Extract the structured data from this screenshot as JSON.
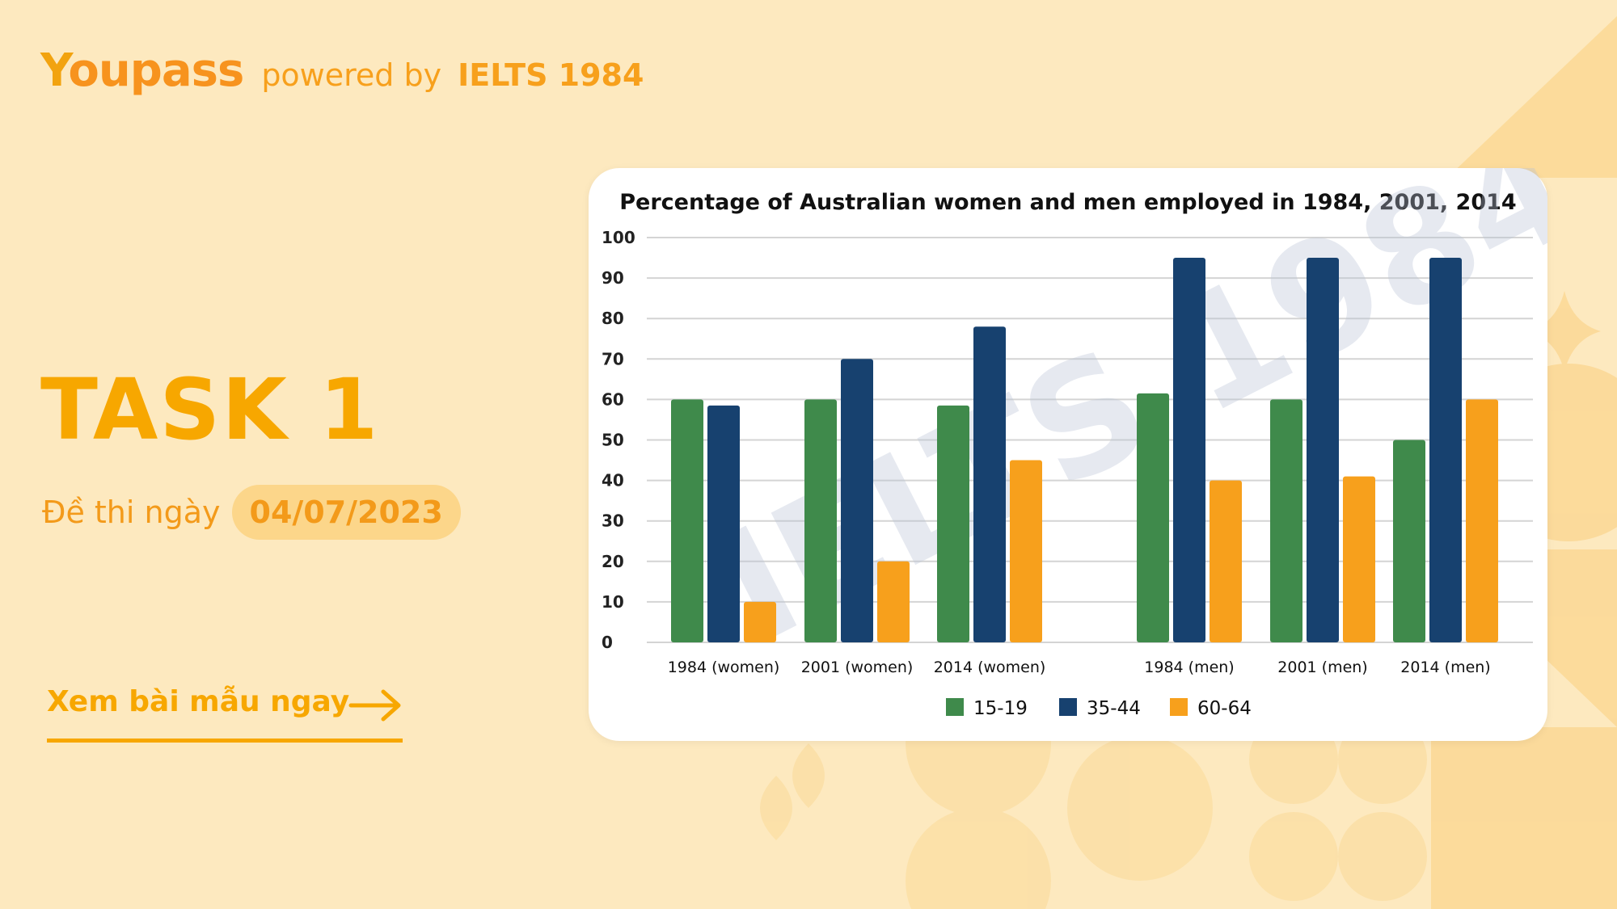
{
  "header": {
    "logo_text": "Youpass",
    "powered_by": "powered by",
    "brand": "IELTS 1984"
  },
  "hero": {
    "task_title": "TASK 1",
    "exam_label": "Đề thi ngày",
    "exam_date": "04/07/2023"
  },
  "cta": {
    "label": "Xem bài mẫu ngay"
  },
  "watermark": {
    "text": "IELTS 1984"
  },
  "colors": {
    "background": "#fde9bf",
    "accent": "#f7a700",
    "series_15_19": "#3f8a4b",
    "series_35_44": "#17416f",
    "series_60_64": "#f7a01c"
  },
  "chart_data": {
    "type": "bar",
    "title": "Percentage of Australian women and men employed in 1984, 2001, 2014",
    "xlabel": "",
    "ylabel": "",
    "ylim": [
      0,
      100
    ],
    "yticks": [
      0,
      10,
      20,
      30,
      40,
      50,
      60,
      70,
      80,
      90,
      100
    ],
    "grid": true,
    "legend_position": "bottom",
    "categories": [
      "1984 (women)",
      "2001 (women)",
      "2014 (women)",
      "1984 (men)",
      "2001 (men)",
      "2014 (men)"
    ],
    "series": [
      {
        "name": "15-19",
        "color": "#3f8a4b",
        "values": [
          60,
          60,
          58.5,
          61.5,
          60,
          50
        ]
      },
      {
        "name": "35-44",
        "color": "#17416f",
        "values": [
          58.5,
          70,
          78,
          95,
          95,
          95
        ]
      },
      {
        "name": "60-64",
        "color": "#f7a01c",
        "values": [
          10,
          20,
          45,
          40,
          41,
          60
        ]
      }
    ]
  }
}
